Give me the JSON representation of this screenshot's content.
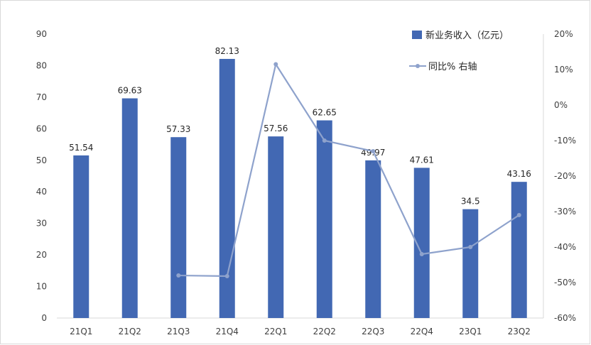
{
  "chart_data": {
    "type": "bar",
    "categories": [
      "21Q1",
      "21Q2",
      "21Q3",
      "21Q4",
      "22Q1",
      "22Q2",
      "22Q3",
      "22Q4",
      "23Q1",
      "23Q2"
    ],
    "series": [
      {
        "name": "新业务收入（亿元）",
        "type": "bar",
        "axis": "left",
        "color": "#4268b3",
        "values": [
          51.54,
          69.63,
          57.33,
          82.13,
          57.56,
          62.65,
          49.97,
          47.61,
          34.5,
          43.16
        ],
        "labels": [
          "51.54",
          "69.63",
          "57.33",
          "82.13",
          "57.56",
          "62.65",
          "49.97",
          "47.61",
          "34.5",
          "43.16"
        ]
      },
      {
        "name": "同比% 右轴",
        "type": "line",
        "axis": "right",
        "color": "#8ea2cc",
        "values": [
          null,
          null,
          -48,
          -48.2,
          11.5,
          -10,
          -13,
          -42,
          -40,
          -31
        ]
      }
    ],
    "ylim": [
      0,
      90
    ],
    "y_ticks": [
      "0",
      "10",
      "20",
      "30",
      "40",
      "50",
      "60",
      "70",
      "80",
      "90"
    ],
    "y2lim": [
      -60,
      20
    ],
    "y2_ticks": [
      "-60%",
      "-50%",
      "-40%",
      "-30%",
      "-20%",
      "-10%",
      "0%",
      "10%",
      "20%"
    ],
    "grid": false,
    "legend_position": "top-right"
  }
}
